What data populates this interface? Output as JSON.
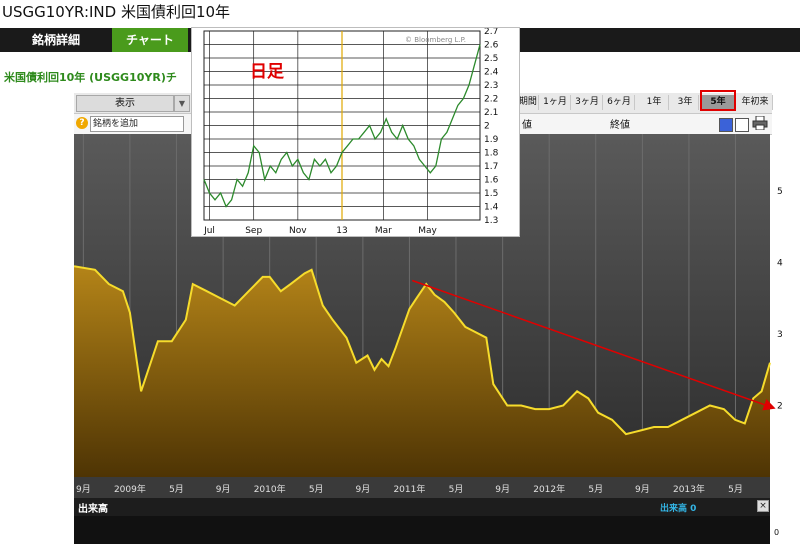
{
  "header": {
    "title": "USGG10YR:IND 米国債利回10年"
  },
  "tabs": {
    "detail": "銘柄詳細",
    "chart": "チャート"
  },
  "subtitle": "米国債利回10年 (USGG10YR)チ",
  "toolbar": {
    "display": "表示",
    "display_arrow": "▼",
    "periods": [
      "1期間",
      "1ヶ月",
      "3ヶ月",
      "6ヶ月",
      "1年",
      "3年",
      "5年",
      "年初来"
    ],
    "selected_period": "5年",
    "add_symbol": "銘柄を追加",
    "col_heads": [
      "値",
      "終値"
    ]
  },
  "volume": {
    "label": "出来高",
    "value_text": "出来高 0",
    "zero": "0",
    "close": "×"
  },
  "colors": {
    "accent_green": "#4a9b1c",
    "area_gold": "#f2d22a",
    "line_green": "#2c8a2c",
    "trend_red": "#e00000",
    "highlight": "#e00000"
  },
  "icons": [
    "help-icon",
    "print-icon",
    "close-icon"
  ],
  "chart_data": [
    {
      "type": "area",
      "title": "",
      "ylim": [
        1.0,
        5.8
      ],
      "y_ticks": [
        2,
        3,
        4,
        5
      ],
      "x_tick_labels": [
        "9月",
        "2009年",
        "5月",
        "9月",
        "2010年",
        "5月",
        "9月",
        "2011年",
        "5月",
        "9月",
        "2012年",
        "5月",
        "9月",
        "2013年",
        "5月"
      ],
      "x_range": [
        2008.6,
        2013.58
      ],
      "x_ticks": [
        2008.667,
        2009.0,
        2009.333,
        2009.667,
        2010.0,
        2010.333,
        2010.667,
        2011.0,
        2011.333,
        2011.667,
        2012.0,
        2012.333,
        2012.667,
        2013.0,
        2013.333
      ],
      "series": [
        {
          "x": [
            2008.6,
            2008.75,
            2008.85,
            2008.95,
            2009.0,
            2009.08,
            2009.2,
            2009.3,
            2009.4,
            2009.45,
            2009.55,
            2009.65,
            2009.75,
            2009.85,
            2009.95,
            2010.0,
            2010.08,
            2010.15,
            2010.25,
            2010.3,
            2010.38,
            2010.45,
            2010.55,
            2010.62,
            2010.7,
            2010.75,
            2010.8,
            2010.85,
            2010.9,
            2011.0,
            2011.05,
            2011.12,
            2011.18,
            2011.25,
            2011.32,
            2011.4,
            2011.45,
            2011.55,
            2011.6,
            2011.7,
            2011.8,
            2011.9,
            2012.0,
            2012.1,
            2012.2,
            2012.28,
            2012.35,
            2012.45,
            2012.55,
            2012.65,
            2012.75,
            2012.85,
            2012.95,
            2013.05,
            2013.15,
            2013.25,
            2013.33,
            2013.4,
            2013.46,
            2013.52,
            2013.58
          ],
          "y": [
            3.95,
            3.9,
            3.7,
            3.6,
            3.3,
            2.2,
            2.9,
            2.9,
            3.2,
            3.7,
            3.6,
            3.5,
            3.4,
            3.6,
            3.8,
            3.8,
            3.6,
            3.7,
            3.85,
            3.9,
            3.4,
            3.2,
            2.95,
            2.6,
            2.7,
            2.5,
            2.65,
            2.55,
            2.8,
            3.35,
            3.5,
            3.7,
            3.55,
            3.45,
            3.3,
            3.1,
            3.05,
            2.95,
            2.3,
            2.0,
            2.0,
            1.95,
            1.95,
            2.0,
            2.2,
            2.1,
            1.9,
            1.8,
            1.6,
            1.65,
            1.7,
            1.7,
            1.8,
            1.9,
            2.0,
            1.95,
            1.8,
            1.75,
            2.1,
            2.2,
            2.6
          ]
        }
      ],
      "trendline": {
        "x": [
          2011.02,
          2013.6
        ],
        "y": [
          3.75,
          1.97
        ]
      }
    },
    {
      "type": "line",
      "title": "",
      "annotation": "日足",
      "watermark": "© Bloomberg L.P.",
      "ylim": [
        1.3,
        2.7
      ],
      "y_ticks": [
        1.3,
        1.4,
        1.5,
        1.6,
        1.7,
        1.8,
        1.9,
        2.0,
        2.1,
        2.2,
        2.3,
        2.4,
        2.5,
        2.6,
        2.7
      ],
      "y_tick_labels": [
        "1.3",
        "1.4",
        "1.5",
        "1.6",
        "1.7",
        "1.8",
        "1.9",
        "2",
        "2.1",
        "2.2",
        "2.3",
        "2.4",
        "2.5",
        "2.6",
        "2.7"
      ],
      "x_tick_labels": [
        "Jul",
        "Sep",
        "Nov",
        "13",
        "Mar",
        "May"
      ],
      "x_range": [
        0,
        100
      ],
      "x_ticks": [
        2,
        18,
        34,
        50,
        65,
        81
      ],
      "series": [
        {
          "x": [
            0,
            2,
            4,
            6,
            8,
            10,
            12,
            14,
            16,
            18,
            20,
            22,
            24,
            26,
            28,
            30,
            32,
            34,
            36,
            38,
            40,
            42,
            44,
            46,
            48,
            50,
            52,
            54,
            56,
            58,
            60,
            62,
            64,
            66,
            68,
            70,
            72,
            74,
            76,
            78,
            80,
            82,
            84,
            86,
            88,
            90,
            92,
            94,
            96,
            98,
            100
          ],
          "y": [
            1.6,
            1.5,
            1.45,
            1.5,
            1.4,
            1.45,
            1.6,
            1.55,
            1.65,
            1.85,
            1.8,
            1.6,
            1.7,
            1.65,
            1.75,
            1.8,
            1.7,
            1.75,
            1.65,
            1.6,
            1.75,
            1.7,
            1.75,
            1.65,
            1.7,
            1.8,
            1.85,
            1.9,
            1.9,
            1.95,
            2.0,
            1.9,
            1.95,
            2.05,
            1.95,
            1.9,
            2.0,
            1.9,
            1.85,
            1.75,
            1.7,
            1.65,
            1.7,
            1.9,
            1.95,
            2.05,
            2.15,
            2.2,
            2.3,
            2.45,
            2.6
          ]
        }
      ],
      "marker_x": 50
    }
  ]
}
